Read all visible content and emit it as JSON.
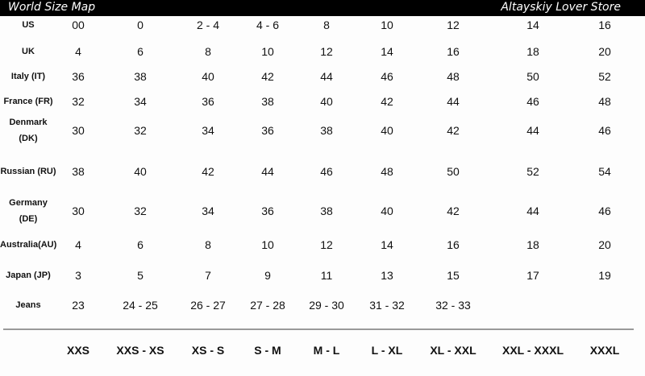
{
  "header": {
    "title": "World Size Map",
    "store": "Altayskiy Lover Store"
  },
  "rows": [
    {
      "label": "US",
      "values": [
        "00",
        "0",
        "2 - 4",
        "4 - 6",
        "8",
        "10",
        "12",
        "14",
        "16"
      ]
    },
    {
      "label": "UK",
      "values": [
        "4",
        "6",
        "8",
        "10",
        "12",
        "14",
        "16",
        "18",
        "20"
      ]
    },
    {
      "label": "Italy (IT)",
      "values": [
        "36",
        "38",
        "40",
        "42",
        "44",
        "46",
        "48",
        "50",
        "52"
      ]
    },
    {
      "label": "France (FR)",
      "values": [
        "32",
        "34",
        "36",
        "38",
        "40",
        "42",
        "44",
        "46",
        "48"
      ]
    },
    {
      "label": "Denmark (DK)",
      "values": [
        "30",
        "32",
        "34",
        "36",
        "38",
        "40",
        "42",
        "44",
        "46"
      ]
    },
    {
      "label": "Russian (RU)",
      "values": [
        "38",
        "40",
        "42",
        "44",
        "46",
        "48",
        "50",
        "52",
        "54"
      ]
    },
    {
      "label": "Germany (DE)",
      "values": [
        "30",
        "32",
        "34",
        "36",
        "38",
        "40",
        "42",
        "44",
        "46"
      ]
    },
    {
      "label": "Australia(AU)",
      "values": [
        "4",
        "6",
        "8",
        "10",
        "12",
        "14",
        "16",
        "18",
        "20"
      ]
    },
    {
      "label": "Japan (JP)",
      "values": [
        "3",
        "5",
        "7",
        "9",
        "11",
        "13",
        "15",
        "17",
        "19"
      ]
    },
    {
      "label": "Jeans",
      "values": [
        "23",
        "24 - 25",
        "26 - 27",
        "27 - 28",
        "29 - 30",
        "31 - 32",
        "32 - 33",
        "",
        ""
      ]
    }
  ],
  "sizes": [
    "XXS",
    "XXS - XS",
    "XS - S",
    "S - M",
    "M - L",
    "L - XL",
    "XL - XXL",
    "XXL - XXXL",
    "XXXL"
  ]
}
